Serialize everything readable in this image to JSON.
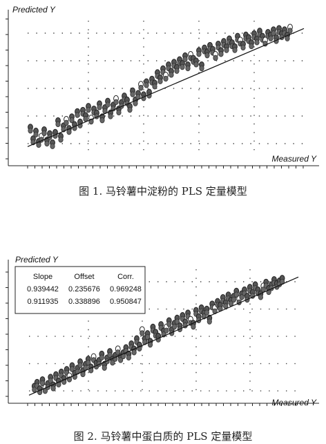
{
  "figures": [
    {
      "caption": "图 1. 马铃薯中淀粉的 PLS 定量模型"
    },
    {
      "caption": "图 2. 马铃薯中蛋白质的 PLS 定量模型"
    }
  ],
  "chart_data": [
    {
      "type": "scatter",
      "title": "",
      "xlabel": "Measured Y",
      "ylabel": "Predicted Y",
      "xlim": [
        0,
        10
      ],
      "ylim": [
        0,
        10
      ],
      "grid": true,
      "fit_line": {
        "x": [
          0,
          10
        ],
        "y": [
          0.3,
          9.4
        ]
      },
      "points": {
        "x": [
          0.1,
          0.2,
          0.3,
          0.4,
          0.5,
          0.6,
          0.7,
          0.8,
          0.9,
          1.0,
          1.1,
          1.2,
          1.3,
          1.4,
          1.5,
          1.6,
          1.7,
          1.8,
          1.9,
          2.0,
          2.1,
          2.2,
          2.3,
          2.4,
          2.5,
          2.6,
          2.7,
          2.8,
          2.9,
          3.0,
          3.1,
          3.2,
          3.3,
          3.4,
          3.5,
          3.6,
          3.7,
          3.8,
          3.9,
          4.0,
          4.1,
          4.2,
          4.3,
          4.4,
          4.5,
          4.6,
          4.7,
          4.8,
          4.9,
          5.0,
          5.1,
          5.2,
          5.3,
          5.4,
          5.5,
          5.6,
          5.7,
          5.8,
          5.9,
          6.0,
          6.1,
          6.2,
          6.3,
          6.4,
          6.5,
          6.6,
          6.7,
          6.8,
          6.9,
          7.0,
          7.1,
          7.2,
          7.3,
          7.4,
          7.5,
          7.6,
          7.7,
          7.8,
          7.9,
          8.0,
          8.1,
          8.2,
          8.3,
          8.4,
          8.5,
          8.6,
          8.7,
          8.8,
          8.9,
          9.0,
          9.1,
          9.2,
          9.3,
          9.4,
          9.5
        ],
        "y": [
          1.8,
          0.9,
          1.5,
          0.7,
          1.1,
          1.6,
          0.8,
          1.3,
          0.6,
          1.4,
          2.3,
          1.1,
          1.9,
          2.4,
          1.7,
          2.6,
          2.0,
          3.0,
          2.2,
          3.1,
          2.7,
          3.4,
          2.5,
          3.2,
          2.9,
          3.6,
          2.6,
          3.3,
          3.8,
          2.9,
          3.5,
          4.0,
          3.2,
          3.7,
          4.2,
          3.9,
          3.4,
          4.6,
          3.9,
          4.4,
          5.1,
          4.3,
          5.3,
          4.5,
          5.5,
          5.2,
          6.0,
          5.6,
          6.3,
          5.8,
          6.6,
          6.1,
          6.8,
          6.4,
          7.0,
          6.7,
          7.3,
          6.6,
          7.4,
          7.1,
          6.9,
          7.7,
          6.6,
          7.9,
          7.6,
          8.1,
          7.8,
          7.4,
          8.2,
          7.7,
          8.4,
          8.0,
          8.6,
          8.3,
          8.0,
          8.8,
          8.5,
          8.2,
          8.9,
          8.7,
          8.3,
          9.0,
          8.6,
          9.2,
          8.8,
          8.5,
          9.1,
          8.9,
          9.3,
          8.7,
          9.4,
          9.0,
          9.3,
          8.9,
          9.5
        ]
      }
    },
    {
      "type": "scatter",
      "title": "",
      "xlabel": "Measured Y",
      "ylabel": "Predicted Y",
      "xlim": [
        0,
        10
      ],
      "ylim": [
        0,
        10
      ],
      "grid": true,
      "fit_line": {
        "x": [
          0,
          10
        ],
        "y": [
          0.2,
          9.4
        ]
      },
      "stats_table": {
        "columns": [
          "Slope",
          "Offset",
          "Corr."
        ],
        "rows": [
          [
            "0.939442",
            "0.235676",
            "0.969248"
          ],
          [
            "0.911935",
            "0.338896",
            "0.950847"
          ]
        ]
      },
      "points": {
        "x": [
          0.2,
          0.3,
          0.4,
          0.5,
          0.6,
          0.7,
          0.8,
          0.9,
          1.0,
          1.1,
          1.2,
          1.3,
          1.4,
          1.5,
          1.6,
          1.7,
          1.8,
          1.9,
          2.0,
          2.1,
          2.2,
          2.3,
          2.4,
          2.5,
          2.6,
          2.7,
          2.8,
          2.9,
          3.0,
          3.1,
          3.2,
          3.3,
          3.4,
          3.5,
          3.6,
          3.7,
          3.8,
          3.9,
          4.0,
          4.1,
          4.2,
          4.3,
          4.4,
          4.5,
          4.6,
          4.7,
          4.8,
          4.9,
          5.0,
          5.1,
          5.2,
          5.3,
          5.4,
          5.5,
          5.6,
          5.7,
          5.8,
          5.9,
          6.0,
          6.1,
          6.2,
          6.3,
          6.4,
          6.5,
          6.6,
          6.7,
          6.8,
          6.9,
          7.0,
          7.1,
          7.2,
          7.3,
          7.4,
          7.5,
          7.6,
          7.7,
          7.8,
          7.9,
          8.0,
          8.1,
          8.2,
          8.3,
          8.4,
          8.5,
          8.6,
          8.7,
          8.8,
          8.9,
          9.0,
          9.1,
          9.2,
          9.3,
          9.4
        ],
        "y": [
          0.9,
          1.2,
          0.7,
          1.4,
          0.8,
          1.1,
          1.6,
          1.0,
          1.8,
          1.3,
          2.0,
          1.5,
          2.2,
          1.7,
          2.5,
          1.9,
          2.3,
          2.8,
          2.1,
          2.6,
          3.0,
          2.4,
          3.2,
          2.7,
          2.9,
          3.4,
          2.6,
          3.1,
          3.6,
          3.0,
          3.3,
          3.8,
          3.2,
          3.5,
          3.9,
          3.4,
          4.2,
          3.8,
          4.6,
          4.1,
          5.3,
          4.6,
          5.0,
          4.4,
          5.5,
          5.1,
          4.8,
          5.7,
          5.2,
          5.5,
          6.0,
          5.3,
          5.8,
          6.2,
          5.6,
          6.4,
          5.9,
          6.6,
          6.1,
          5.8,
          6.8,
          6.3,
          7.0,
          6.6,
          6.9,
          6.2,
          7.3,
          7.0,
          7.5,
          7.2,
          7.8,
          7.4,
          8.0,
          7.6,
          7.9,
          8.3,
          7.7,
          8.1,
          8.4,
          7.9,
          8.6,
          8.2,
          8.8,
          8.4,
          8.1,
          8.7,
          9.0,
          8.5,
          8.8,
          9.2,
          8.9,
          9.1,
          9.3
        ]
      }
    }
  ]
}
